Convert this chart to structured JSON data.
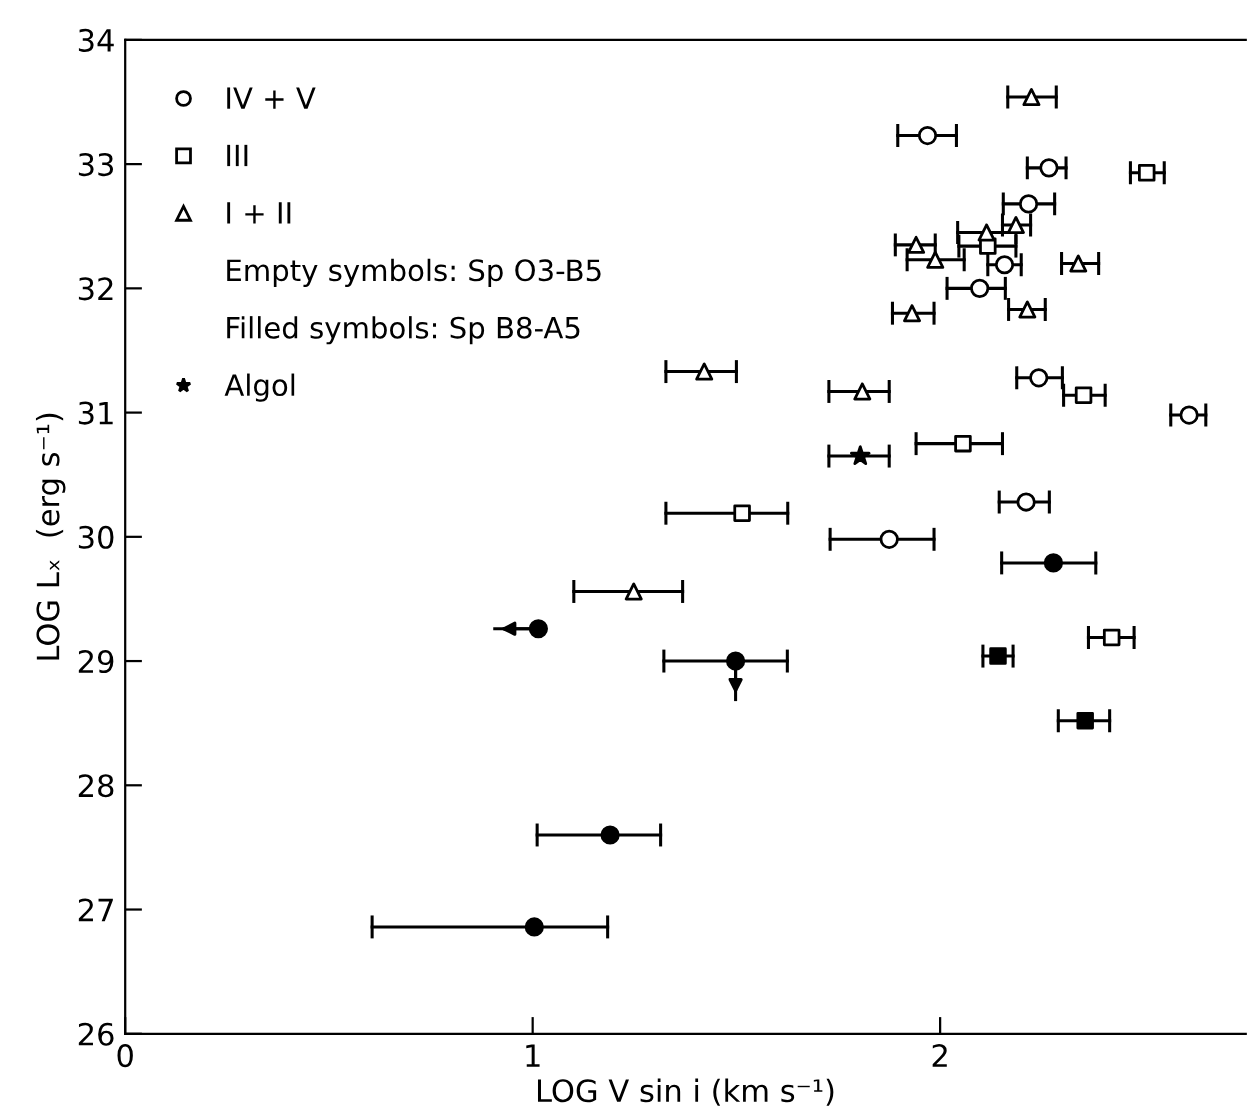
{
  "chart_data": {
    "type": "scatter",
    "xlabel": "LOG V sin i (km s⁻¹)",
    "ylabel": "LOG Lₓ  (erg s⁻¹)",
    "xlim": [
      0,
      2.75
    ],
    "xticks": [
      0,
      1,
      2
    ],
    "ylim": [
      26,
      34
    ],
    "yticks": [
      26,
      27,
      28,
      29,
      30,
      31,
      32,
      33,
      34
    ],
    "grid": false,
    "legend": "top left",
    "annotations": [
      "Empty symbols: Sp O3-B5",
      "Filled symbols: Sp B8-A5"
    ],
    "series": [
      {
        "name": "IV + V",
        "marker": "circle",
        "color": "#ffffff",
        "x": [
          1.969,
          2.267,
          2.217,
          2.158,
          2.097,
          2.242,
          2.611,
          2.211,
          1.875
        ],
        "values": [
          33.23,
          32.97,
          32.68,
          32.19,
          32.0,
          31.28,
          30.98,
          30.28,
          29.98
        ],
        "xerrors": [
          [
            1.896,
            2.04
          ],
          [
            2.214,
            2.309
          ],
          [
            2.155,
            2.281
          ],
          [
            2.117,
            2.199
          ],
          [
            2.017,
            2.16
          ],
          [
            2.188,
            2.3
          ],
          [
            2.566,
            2.652
          ],
          [
            2.145,
            2.268
          ],
          [
            1.73,
            1.985
          ]
        ]
      },
      {
        "name": "III",
        "marker": "square",
        "color": "#ffffff",
        "x": [
          2.507,
          2.117,
          2.352,
          2.056,
          1.514,
          2.421
        ],
        "values": [
          32.93,
          32.34,
          31.14,
          30.75,
          30.19,
          29.19
        ],
        "xerrors": [
          [
            2.467,
            2.55
          ],
          [
            2.046,
            2.186
          ],
          [
            2.303,
            2.405
          ],
          [
            1.941,
            2.153
          ],
          [
            1.327,
            1.626
          ],
          [
            2.364,
            2.476
          ]
        ]
      },
      {
        "name": "I + II",
        "marker": "triangle",
        "color": "#ffffff",
        "x": [
          2.224,
          2.186,
          2.114,
          1.941,
          1.988,
          2.339,
          1.931,
          2.214,
          1.421,
          1.809,
          1.248
        ],
        "values": [
          33.54,
          32.51,
          32.45,
          32.35,
          32.23,
          32.2,
          31.8,
          31.83,
          31.33,
          31.17,
          29.56
        ],
        "xerrors": [
          [
            2.166,
            2.285
          ],
          [
            2.153,
            2.222
          ],
          [
            2.043,
            2.186
          ],
          [
            1.89,
            1.988
          ],
          [
            1.919,
            2.059
          ],
          [
            2.298,
            2.389
          ],
          [
            1.883,
            1.985
          ],
          [
            2.168,
            2.258
          ],
          [
            1.327,
            1.5
          ],
          [
            1.727,
            1.875
          ],
          [
            1.101,
            1.368
          ]
        ]
      },
      {
        "name": "Algol",
        "marker": "star",
        "color": "#000000",
        "x": [
          1.804
        ],
        "values": [
          30.65
        ],
        "xerrors": [
          [
            1.727,
            1.875
          ]
        ]
      },
      {
        "marker": "circle",
        "color": "#000000",
        "x": [
          2.278,
          1.014,
          1.498,
          1.19,
          1.004
        ],
        "values": [
          29.79,
          29.26,
          29.0,
          27.6,
          26.86
        ],
        "xerrors": [
          [
            2.151,
            2.382
          ],
          [
            0.907,
            1.014
          ],
          [
            1.322,
            1.625
          ],
          [
            1.011,
            1.314
          ],
          [
            0.606,
            1.184
          ]
        ],
        "errors": [
          null,
          null,
          [
            28.69,
            29.0
          ],
          null,
          null
        ]
      },
      {
        "marker": "square",
        "color": "#000000",
        "x": [
          2.142,
          2.356
        ],
        "values": [
          29.04,
          28.52
        ],
        "xerrors": [
          [
            2.105,
            2.179
          ],
          [
            2.29,
            2.416
          ]
        ]
      }
    ]
  }
}
